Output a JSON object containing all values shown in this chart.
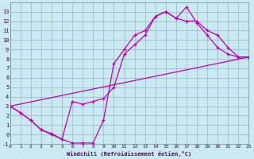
{
  "bg_color": "#c8eaf0",
  "grid_color": "#9ab0c8",
  "line_color": "#bb00bb",
  "xlim": [
    0,
    23
  ],
  "ylim": [
    -1,
    14
  ],
  "xticks": [
    0,
    1,
    2,
    3,
    4,
    5,
    6,
    7,
    8,
    9,
    10,
    11,
    12,
    13,
    14,
    15,
    16,
    17,
    18,
    19,
    20,
    21,
    22,
    23
  ],
  "yticks": [
    -1,
    0,
    1,
    2,
    3,
    4,
    5,
    6,
    7,
    8,
    9,
    10,
    11,
    12,
    13
  ],
  "xlabel": "Windchill (Refroidissement éolien,°C)",
  "curve1_x": [
    0,
    1,
    2,
    3,
    4,
    5,
    6,
    7,
    8,
    9,
    10,
    11,
    12,
    13,
    14,
    15,
    16,
    17,
    18,
    19,
    20,
    21,
    22,
    23
  ],
  "curve1_y": [
    3,
    2.3,
    1.5,
    0.5,
    0.0,
    -0.5,
    -0.9,
    -0.9,
    -0.9,
    1.5,
    7.5,
    9.0,
    10.5,
    11.0,
    12.5,
    13.0,
    12.3,
    13.5,
    11.8,
    10.5,
    9.2,
    8.5,
    8.2,
    8.2
  ],
  "curve2_x": [
    0,
    1,
    2,
    3,
    4,
    5,
    6,
    7,
    8,
    9,
    10,
    11,
    12,
    13,
    14,
    15,
    16,
    17,
    18,
    19,
    20,
    21,
    22,
    23
  ],
  "curve2_y": [
    3,
    2.3,
    1.5,
    0.5,
    0.1,
    -0.5,
    3.5,
    3.2,
    3.5,
    3.8,
    5.0,
    8.5,
    9.5,
    10.5,
    12.5,
    13.0,
    12.3,
    12.0,
    12.0,
    11.0,
    10.5,
    9.2,
    8.2,
    8.2
  ],
  "curve3_x": [
    0,
    23
  ],
  "curve3_y": [
    3,
    8.2
  ]
}
